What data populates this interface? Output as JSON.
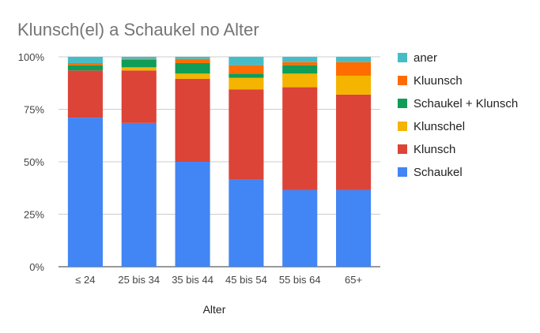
{
  "chart_data": {
    "type": "bar",
    "stacked": true,
    "normalized": true,
    "title": "Klunsch(el) a Schaukel no Alter",
    "xlabel": "Alter",
    "ylabel": "",
    "ylim": [
      0,
      100
    ],
    "y_ticks": [
      "0%",
      "25%",
      "50%",
      "75%",
      "100%"
    ],
    "grid": true,
    "legend_position": "right",
    "categories": [
      "≤ 24",
      "25 bis 34",
      "35 bis 44",
      "45 bis 54",
      "55 bis 64",
      "65+"
    ],
    "series": [
      {
        "name": "Schaukel",
        "color": "#4285f4",
        "values": [
          71,
          68.5,
          50,
          41.5,
          36.5,
          36.5
        ]
      },
      {
        "name": "Klunsch",
        "color": "#db4437",
        "values": [
          22.5,
          25,
          39.5,
          43,
          49,
          45.5
        ]
      },
      {
        "name": "Klunschel",
        "color": "#f4b400",
        "values": [
          0,
          1.5,
          2.5,
          5.5,
          6.5,
          9
        ]
      },
      {
        "name": "Schaukel + Klunsch",
        "color": "#0f9d58",
        "values": [
          2.5,
          3.5,
          5,
          2,
          4,
          0
        ]
      },
      {
        "name": "Kluunsch",
        "color": "#ff6d00",
        "values": [
          1,
          0.5,
          2,
          4,
          1.5,
          6.5
        ]
      },
      {
        "name": "aner",
        "color": "#46bdc6",
        "values": [
          3,
          1,
          1,
          4,
          2.5,
          2.5
        ]
      }
    ]
  }
}
